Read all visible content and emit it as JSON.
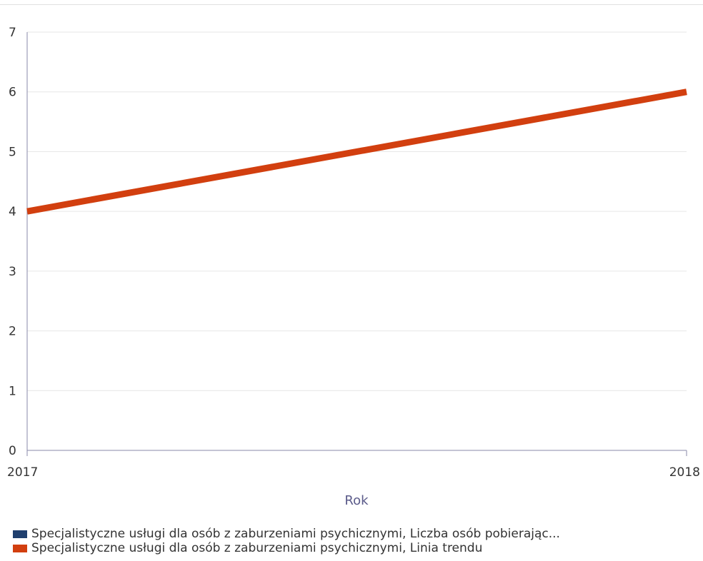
{
  "chart_data": {
    "type": "line",
    "x": [
      "2017",
      "2018"
    ],
    "xlabel": "Rok",
    "ylabel": "",
    "ylim": [
      0,
      7
    ],
    "yticks": [
      0,
      1,
      2,
      3,
      4,
      5,
      6,
      7
    ],
    "grid": true,
    "legend_position": "bottom-left",
    "series": [
      {
        "name": "Specjalistyczne usługi dla osób z zaburzeniami psychicznymi, Liczba osób pobierając...",
        "color": "#1f3f6e",
        "values": [
          null,
          null
        ]
      },
      {
        "name": "Specjalistyczne usługi dla osób z zaburzeniami psychicznymi, Linia trendu",
        "color": "#d23f0f",
        "values": [
          4,
          6
        ]
      }
    ]
  }
}
